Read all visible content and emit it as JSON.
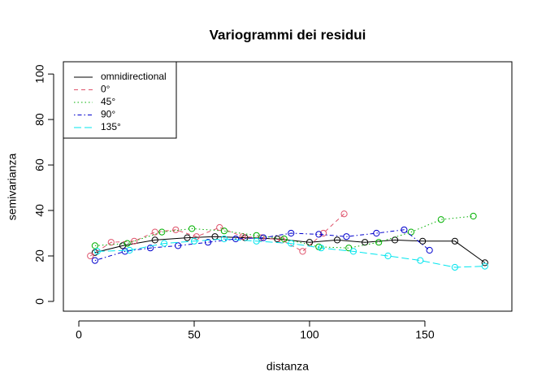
{
  "chart_data": {
    "type": "line",
    "title": "Variogrammi dei residui",
    "x_label": "distanza",
    "y_label": "semivarianza",
    "xlim": [
      -6.7,
      187.7
    ],
    "ylim": [
      -4.3,
      105.4
    ],
    "xticks": [
      0,
      50,
      100,
      150
    ],
    "yticks": [
      0,
      20,
      40,
      60,
      80,
      100
    ],
    "legend": "top-left",
    "series": [
      {
        "name": "omnidirectional",
        "color": "#000000",
        "dash": "solid",
        "x": [
          7,
          19,
          33,
          47,
          59,
          72,
          86,
          100,
          112,
          124,
          137,
          149,
          163,
          176
        ],
        "values": [
          21.5,
          24.5,
          27,
          28,
          28.5,
          28,
          27.5,
          26,
          27,
          26,
          27,
          26.5,
          26.5,
          17
        ]
      },
      {
        "name": "0°",
        "color": "#df536b",
        "dash": "dashed",
        "x": [
          5,
          14,
          24,
          33,
          42,
          51,
          61,
          71,
          79,
          88,
          97,
          106,
          115
        ],
        "values": [
          20,
          26,
          26.5,
          30.5,
          31.5,
          28.5,
          32.5,
          28.5,
          28,
          27,
          22,
          30,
          38.5
        ]
      },
      {
        "name": "45°",
        "color": "#00b000",
        "dash": "dotted",
        "x": [
          7,
          21,
          36,
          49,
          63,
          77,
          89,
          104,
          117,
          130,
          144,
          157,
          171
        ],
        "values": [
          24.5,
          25.5,
          30.5,
          32,
          31,
          29,
          27.5,
          24,
          23.5,
          26,
          30.5,
          36,
          37.5
        ]
      },
      {
        "name": "90°",
        "color": "#0000cd",
        "dash": "dotdash",
        "x": [
          7,
          20,
          31,
          43,
          56,
          68,
          80,
          92,
          104,
          116,
          129,
          141,
          152
        ],
        "values": [
          18,
          22,
          23.5,
          24.5,
          26,
          27.5,
          28,
          30,
          29.5,
          28.5,
          30,
          31.5,
          22.5
        ]
      },
      {
        "name": "135°",
        "color": "#00e5ee",
        "dash": "longdash",
        "x": [
          8,
          22,
          37,
          50,
          63,
          77,
          92,
          105,
          119,
          134,
          148,
          163,
          176
        ],
        "values": [
          22,
          22.5,
          25.5,
          26.5,
          27.5,
          26.5,
          25.5,
          23.5,
          22,
          20,
          18,
          15,
          15.5
        ]
      }
    ]
  }
}
